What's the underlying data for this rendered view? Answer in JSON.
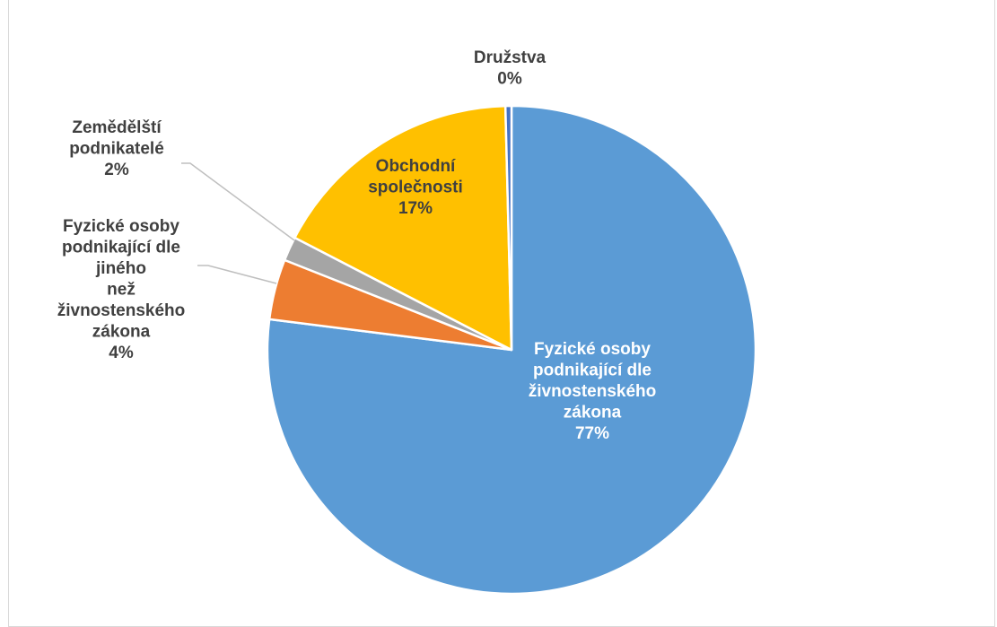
{
  "chart_data": {
    "type": "pie",
    "title": "",
    "start_angle_deg": 0,
    "direction": "clockwise",
    "slices": [
      {
        "name": "Fyzické osoby podnikající dle živnostenského zákona",
        "label_lines": [
          "Fyzické osoby",
          "podnikající dle",
          "živnostenského",
          "zákona"
        ],
        "value": 77,
        "value_label": "77%",
        "color": "#5b9bd5",
        "label_style": "inside"
      },
      {
        "name": "Fyzické osoby podnikající dle jiného než živnostenského zákona",
        "label_lines": [
          "Fyzické osoby",
          "podnikající dle",
          "jiného",
          "než",
          "živnostenského",
          "zákona"
        ],
        "value": 4,
        "value_label": "4%",
        "color": "#ed7d31",
        "label_style": "outside"
      },
      {
        "name": "Zemědělští podnikatelé",
        "label_lines": [
          "Zemědělští",
          "podnikatelé"
        ],
        "value": 1.6,
        "value_label": "2%",
        "color": "#a5a5a5",
        "label_style": "outside"
      },
      {
        "name": "Obchodní společnosti",
        "label_lines": [
          "Obchodní",
          "společnosti"
        ],
        "value": 17,
        "value_label": "17%",
        "color": "#ffc000",
        "label_style": "inside"
      },
      {
        "name": "Družstva",
        "label_lines": [
          "Družstva"
        ],
        "value": 0.4,
        "value_label": "0%",
        "color": "#4472c4",
        "label_style": "outside"
      }
    ]
  }
}
